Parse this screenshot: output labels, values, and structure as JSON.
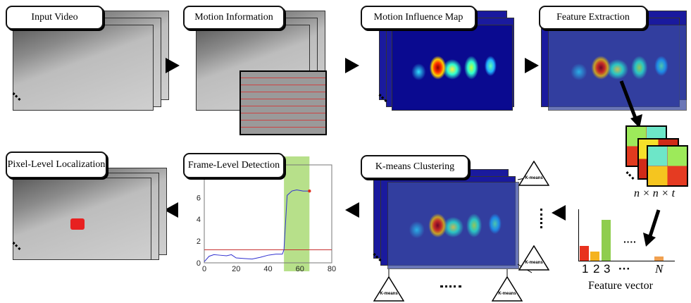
{
  "stages": {
    "input_video": "Input Video",
    "motion_information": "Motion Information",
    "motion_influence_map": "Motion Influence Map",
    "feature_extraction": "Feature Extraction",
    "kmeans_clustering": "K-means Clustering",
    "frame_level_detection": "Frame-Level Detection",
    "pixel_level_localization": "Pixel-Level Localization"
  },
  "feature": {
    "dims": "n × n × t",
    "vector_label": "Feature vector",
    "bar_labels": [
      "1",
      "2",
      "3",
      "···",
      "N"
    ],
    "bars": [
      {
        "label": "1",
        "value": 0.37,
        "color": "#e8321e"
      },
      {
        "label": "2",
        "value": 0.22,
        "color": "#f5b31f"
      },
      {
        "label": "3",
        "value": 1.0,
        "color": "#8fcd4e"
      },
      {
        "label": "N",
        "value": 0.1,
        "color": "#f0a050"
      }
    ],
    "cube_colors": [
      "#9dea5a",
      "#6de6c8",
      "#e23a1e",
      "#f5c51f",
      "#e53b22"
    ]
  },
  "kmeans": {
    "node_label": "K-means"
  },
  "chart_data": {
    "type": "line",
    "xlim": [
      0,
      80
    ],
    "ylim": [
      0,
      9
    ],
    "xticks": [
      "0",
      "20",
      "40",
      "60",
      "80"
    ],
    "yticks": [
      "0",
      "2",
      "4",
      "6",
      "8"
    ],
    "highlight_x_range": [
      50,
      66
    ],
    "threshold": 1.2,
    "series": [
      {
        "x": [
          0,
          3,
          6,
          10,
          14,
          17,
          20,
          25,
          30,
          35,
          40,
          45,
          49,
          50,
          52,
          55,
          58,
          62,
          66
        ],
        "y": [
          0.1,
          0.6,
          0.75,
          0.7,
          0.65,
          0.75,
          0.45,
          0.4,
          0.35,
          0.5,
          0.7,
          0.8,
          0.8,
          1.2,
          6.2,
          6.6,
          6.7,
          6.6,
          6.6
        ]
      }
    ],
    "colors": {
      "line": "#3030d0",
      "threshold": "#c83030",
      "highlight": "#b7e08a",
      "endpoint": "#e03020"
    }
  }
}
